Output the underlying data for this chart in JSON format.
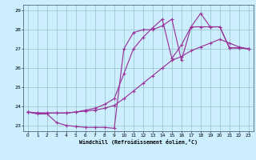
{
  "xlabel": "Windchill (Refroidissement éolien,°C)",
  "background_color": "#cceeff",
  "grid_color": "#99cccc",
  "line_color": "#993399",
  "xlim": [
    -0.5,
    23.5
  ],
  "ylim": [
    22.7,
    29.3
  ],
  "yticks": [
    23,
    24,
    25,
    26,
    27,
    28,
    29
  ],
  "xticks": [
    0,
    1,
    2,
    3,
    4,
    5,
    6,
    7,
    8,
    9,
    10,
    11,
    12,
    13,
    14,
    15,
    16,
    17,
    18,
    19,
    20,
    21,
    22,
    23
  ],
  "line1_x": [
    0,
    1,
    2,
    3,
    4,
    5,
    6,
    7,
    8,
    9,
    10,
    11,
    12,
    13,
    14,
    15,
    16,
    17,
    18,
    19,
    20,
    21,
    22,
    23
  ],
  "line1_y": [
    23.7,
    23.6,
    23.6,
    23.15,
    23.0,
    22.95,
    22.9,
    22.9,
    22.9,
    22.85,
    27.0,
    27.85,
    28.0,
    28.0,
    28.2,
    28.55,
    26.4,
    28.15,
    28.85,
    28.15,
    28.15,
    27.05,
    27.05,
    27.0
  ],
  "line2_x": [
    0,
    1,
    2,
    3,
    4,
    5,
    6,
    7,
    8,
    9,
    10,
    11,
    12,
    13,
    14,
    15,
    16,
    17,
    18,
    19,
    20,
    21,
    22,
    23
  ],
  "line2_y": [
    23.7,
    23.65,
    23.65,
    23.65,
    23.65,
    23.7,
    23.75,
    23.8,
    23.9,
    24.05,
    24.4,
    24.8,
    25.2,
    25.6,
    26.0,
    26.4,
    26.6,
    26.9,
    27.1,
    27.3,
    27.5,
    27.3,
    27.1,
    27.0
  ],
  "line3_x": [
    0,
    1,
    2,
    3,
    4,
    5,
    6,
    7,
    8,
    9,
    10,
    11,
    12,
    13,
    14,
    15,
    16,
    17,
    18,
    19,
    20,
    21,
    22,
    23
  ],
  "line3_y": [
    23.7,
    23.65,
    23.65,
    23.65,
    23.65,
    23.7,
    23.8,
    23.9,
    24.1,
    24.4,
    25.7,
    27.0,
    27.6,
    28.1,
    28.55,
    26.5,
    27.2,
    28.15,
    28.15,
    28.15,
    28.15,
    27.05,
    27.05,
    27.0
  ]
}
